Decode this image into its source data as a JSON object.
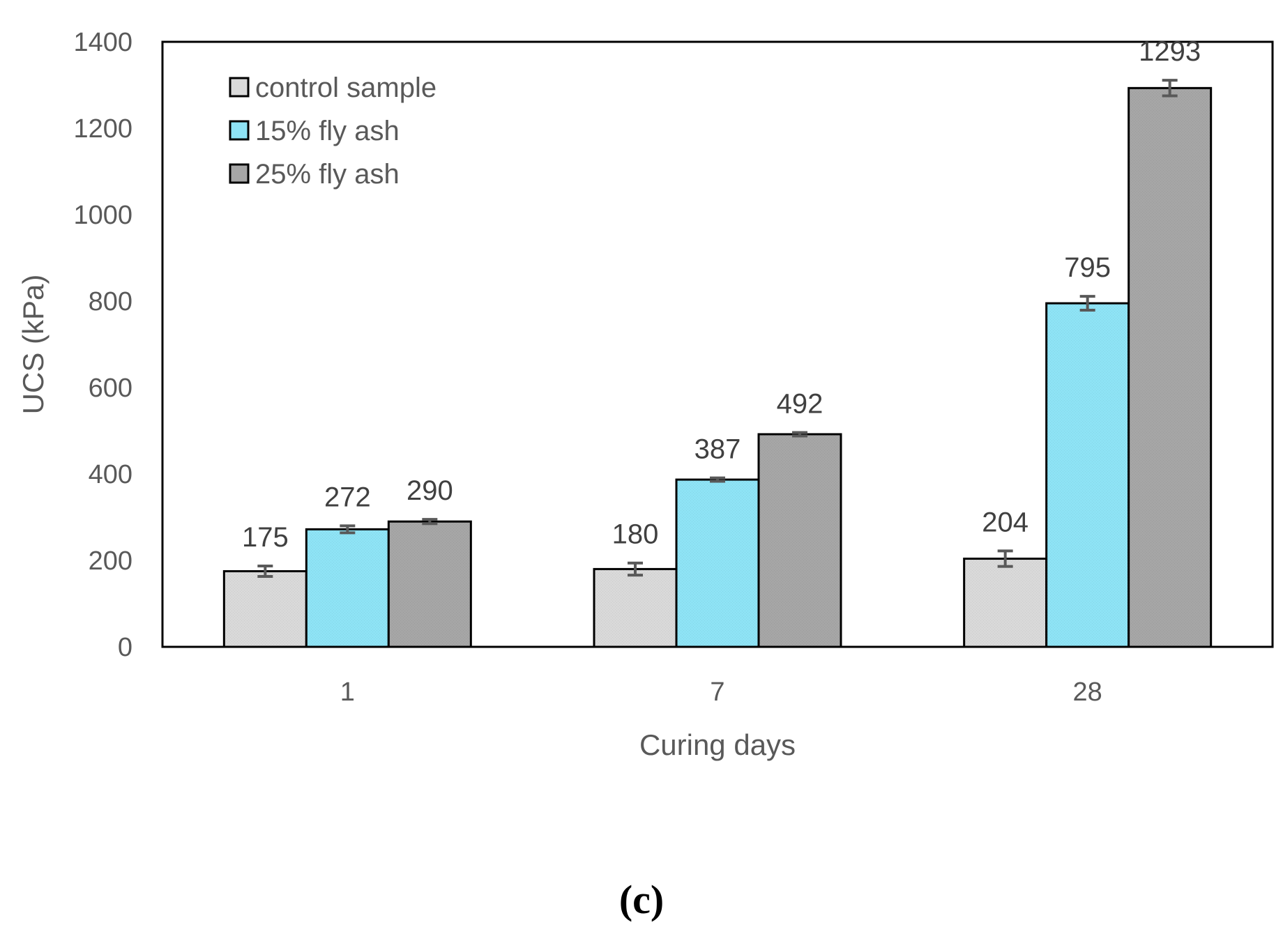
{
  "chart_data": {
    "type": "bar",
    "title": "",
    "xlabel": "Curing days",
    "ylabel": "UCS (kPa)",
    "ylim": [
      0,
      1400
    ],
    "yticks": [
      0,
      200,
      400,
      600,
      800,
      1000,
      1200,
      1400
    ],
    "categories": [
      "1",
      "7",
      "28"
    ],
    "series": [
      {
        "name": "control sample",
        "values": [
          175,
          180,
          204
        ],
        "errors": [
          12,
          14,
          18
        ],
        "color": "#d9d9d9"
      },
      {
        "name": "15% fly ash",
        "values": [
          272,
          387,
          795
        ],
        "errors": [
          8,
          4,
          16
        ],
        "color": "#8ee3f5"
      },
      {
        "name": "25% fly ash",
        "values": [
          290,
          492,
          1293
        ],
        "errors": [
          5,
          4,
          18
        ],
        "color": "#a6a6a6"
      }
    ],
    "data_labels": [
      [
        "175",
        "180",
        "204"
      ],
      [
        "272",
        "387",
        "795"
      ],
      [
        "290",
        "492",
        "1293"
      ]
    ],
    "legend_position": "top-left",
    "grid": false,
    "panel_label": "(c)"
  }
}
